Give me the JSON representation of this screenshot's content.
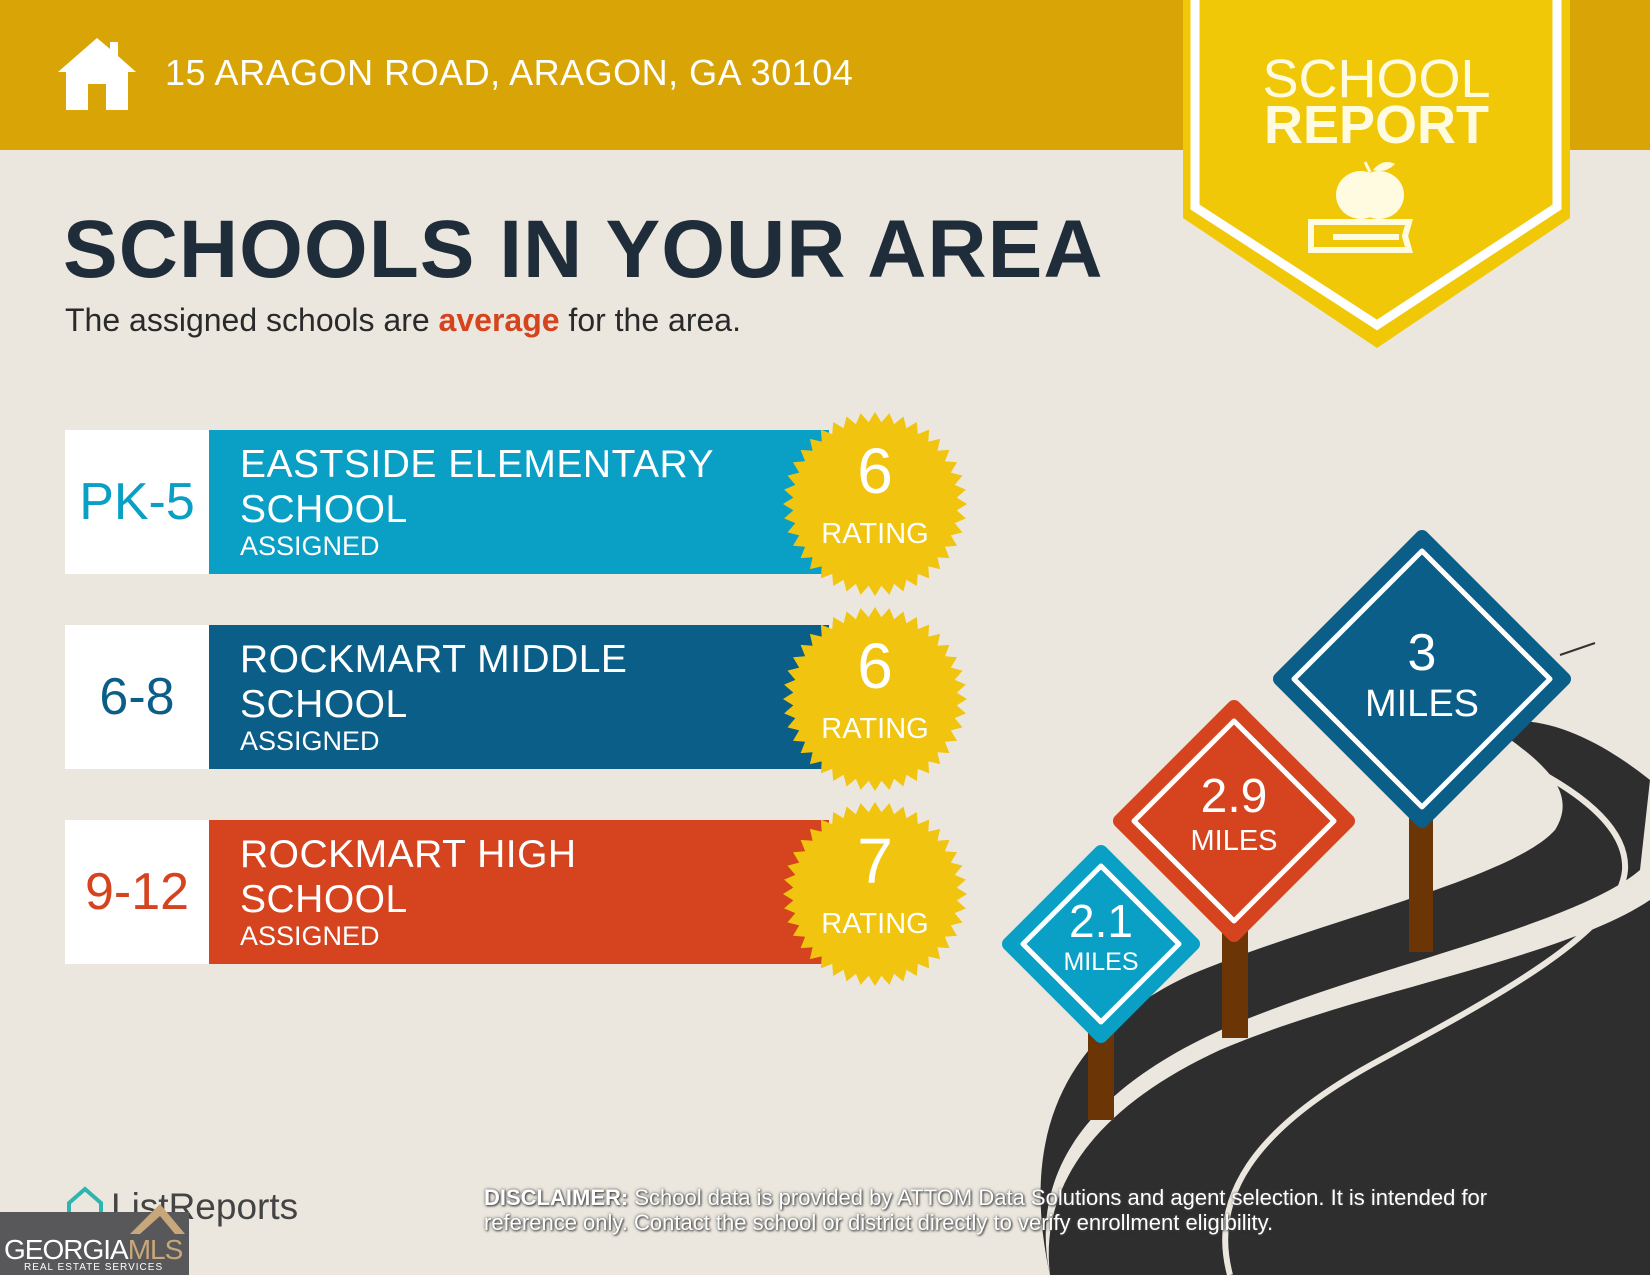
{
  "header": {
    "address": "15 ARAGON ROAD, ARAGON, GA 30104",
    "icon": "house-icon"
  },
  "badge": {
    "line1": "SCHOOL",
    "line2": "REPORT",
    "icon": "apple-book-icon"
  },
  "title": "SCHOOLS IN YOUR AREA",
  "subtitle": {
    "before": "The assigned schools are ",
    "emphasis": "average",
    "after": " for the area."
  },
  "schools": [
    {
      "grades": "PK-5",
      "name_line1": "EASTSIDE ELEMENTARY",
      "name_line2": "SCHOOL",
      "status": "ASSIGNED",
      "rating": "6",
      "rating_label": "RATING",
      "color": "#0a9fc4"
    },
    {
      "grades": "6-8",
      "name_line1": "ROCKMART MIDDLE",
      "name_line2": "SCHOOL",
      "status": "ASSIGNED",
      "rating": "6",
      "rating_label": "RATING",
      "color": "#0a5e87"
    },
    {
      "grades": "9-12",
      "name_line1": "ROCKMART HIGH",
      "name_line2": "SCHOOL",
      "status": "ASSIGNED",
      "rating": "7",
      "rating_label": "RATING",
      "color": "#d5431f"
    }
  ],
  "distances": [
    {
      "value": "3",
      "unit": "MILES",
      "color": "#0a5e87"
    },
    {
      "value": "2.9",
      "unit": "MILES",
      "color": "#d5431f"
    },
    {
      "value": "2.1",
      "unit": "MILES",
      "color": "#0a9fc4"
    }
  ],
  "disclaimer": {
    "label": "DISCLAIMER:",
    "text": " School data is provided by ATTOM Data Solutions and agent selection. It is intended for reference only. Contact the school or district directly to verify enrollment eligibility."
  },
  "footer": {
    "brand": "ListReports",
    "mls_name1": "GEORGIA",
    "mls_name2": "MLS",
    "mls_tagline": "REAL ESTATE SERVICES"
  },
  "colors": {
    "header": "#d9a406",
    "badge": "#f0c808",
    "background": "#ebe7de",
    "seal": "#f1c40f",
    "title": "#1f2d3a"
  }
}
